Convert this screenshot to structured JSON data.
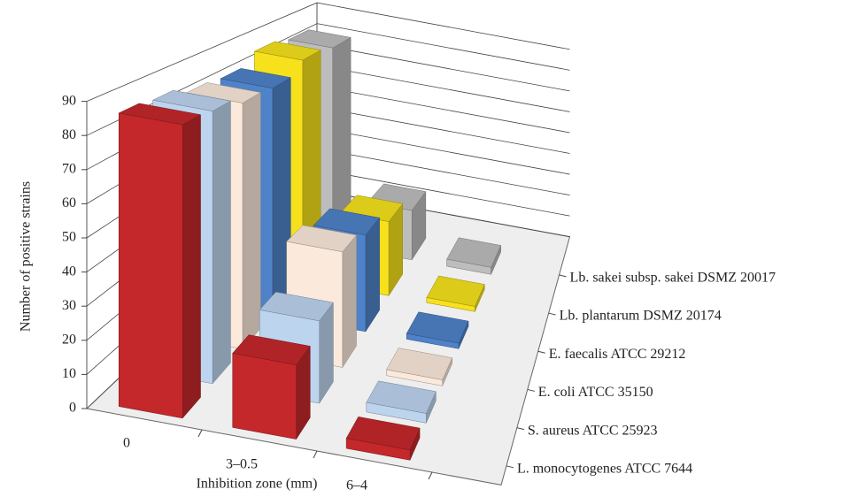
{
  "chart_data": {
    "type": "bar3d",
    "x_label": "Inhibition zone (mm)",
    "y_label": "Number of positive strains",
    "categories": [
      "0",
      "3–0.5",
      "6–4"
    ],
    "ylim": [
      0,
      90
    ],
    "yticks": [
      0,
      10,
      20,
      30,
      40,
      50,
      60,
      70,
      80,
      90
    ],
    "grid": true,
    "series": [
      {
        "name": "L. monocytogenes ATCC 7644",
        "color": "#c4282b",
        "values": [
          87,
          22,
          3
        ]
      },
      {
        "name": "S. aureus ATCC 25923",
        "color": "#bdd4ef",
        "values": [
          86,
          26,
          3
        ]
      },
      {
        "name": "E. coli ATCC 35150",
        "color": "#fbe9db",
        "values": [
          83,
          39,
          2
        ]
      },
      {
        "name": "E. faecalis ATCC 29212",
        "color": "#4f82c8",
        "values": [
          82,
          35,
          2
        ]
      },
      {
        "name": "Lb. plantarum DSMZ 20174",
        "color": "#f6e11c",
        "values": [
          86,
          29,
          2
        ]
      },
      {
        "name": "Lb. sakei subsp. sakei DSMZ 20017",
        "color": "#bdbdbd",
        "values": [
          84,
          21,
          3
        ]
      }
    ]
  }
}
